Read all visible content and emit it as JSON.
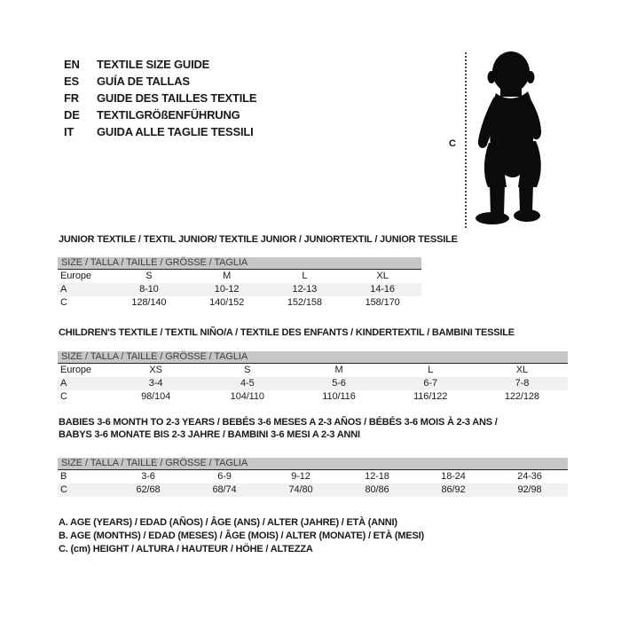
{
  "languages": {
    "items": [
      {
        "code": "EN",
        "label": "TEXTILE SIZE GUIDE"
      },
      {
        "code": "ES",
        "label": "GUÍA DE TALLAS"
      },
      {
        "code": "FR",
        "label": "GUIDE DES TAILLES TEXTILE"
      },
      {
        "code": "DE",
        "label": "TEXTILGRÖßENFÜHRUNG"
      },
      {
        "code": "IT",
        "label": "GUIDA ALLE TAGLIE TESSILI"
      }
    ]
  },
  "figure": {
    "icon": "baby-silhouette-icon",
    "measure_label": "C"
  },
  "sections": [
    {
      "title": "JUNIOR TEXTILE / TEXTIL JUNIOR/ TEXTILE JUNIOR / JUNIORTEXTIL / JUNIOR TESSILE",
      "size_header": "SIZE / TALLA / TAILLE / GRÖSSE / TAGLIA",
      "rows": [
        {
          "label": "Europe",
          "values": [
            "S",
            "M",
            "L",
            "XL"
          ]
        },
        {
          "label": "A",
          "values": [
            "8-10",
            "10-12",
            "12-13",
            "14-16"
          ]
        },
        {
          "label": "C",
          "values": [
            "128/140",
            "140/152",
            "152/158",
            "158/170"
          ]
        }
      ]
    },
    {
      "title": "CHILDREN'S TEXTILE / TEXTIL NIÑO/A / TEXTILE DES ENFANTS / KINDERTEXTIL / BAMBINI TESSILE",
      "size_header": "SIZE / TALLA / TAILLE / GRÖSSE / TAGLIA",
      "rows": [
        {
          "label": "Europe",
          "values": [
            "XS",
            "S",
            "M",
            "L",
            "XL"
          ]
        },
        {
          "label": "A",
          "values": [
            "3-4",
            "4-5",
            "5-6",
            "6-7",
            "7-8"
          ]
        },
        {
          "label": "C",
          "values": [
            "98/104",
            "104/110",
            "110/116",
            "116/122",
            "122/128"
          ]
        }
      ]
    },
    {
      "title": "BABIES 3-6 MONTH TO 2-3 YEARS / BEBÉS 3-6 MESES A 2-3 AÑOS / BÉBÉS 3-6 MOIS À 2-3 ANS /",
      "title2": "BABYS 3-6 MONATE BIS 2-3 JAHRE / BAMBINI 3-6 MESI A 2-3 ANNI",
      "size_header": "SIZE / TALLA / TAILLE / GRÖSSE / TAGLIA",
      "rows": [
        {
          "label": "B",
          "values": [
            "3-6",
            "6-9",
            "9-12",
            "12-18",
            "18-24",
            "24-36"
          ]
        },
        {
          "label": "C",
          "values": [
            "62/68",
            "68/74",
            "74/80",
            "80/86",
            "86/92",
            "92/98"
          ]
        }
      ]
    }
  ],
  "legend": {
    "lines": [
      "A. AGE (YEARS) / EDAD (AÑOS) / ÂGE (ANS) / ALTER (JAHRE) / ETÀ (ANNI)",
      "B. AGE (MONTHS) / EDAD (MESES) / ÂGE (MOIS) / ALTER (MONATE) / ETÀ (MESI)",
      "C. (cm) HEIGHT / ALTURA / HAUTEUR / HÖHE / ALTEZZA"
    ]
  },
  "colors": {
    "size_bar_bg": "#c6c6c6",
    "shaded_row_bg": "#f1f1f1",
    "text": "#1a1a1a",
    "silhouette": "#0b0b0b"
  }
}
